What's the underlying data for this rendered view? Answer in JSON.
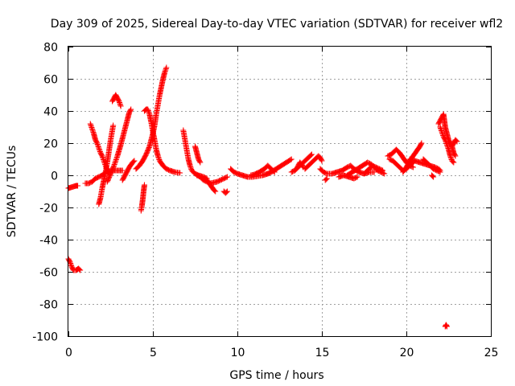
{
  "chart_data": {
    "type": "scatter",
    "title": "Day 309 of 2025, Sidereal Day-to-day VTEC variation (SDTVAR) for receiver wfl2",
    "xlabel": "GPS time / hours",
    "ylabel": "SDTVAR / TECUs",
    "xlim": [
      0,
      25
    ],
    "ylim": [
      -100,
      80
    ],
    "x_ticks": [
      0,
      5,
      10,
      15,
      20,
      25
    ],
    "y_ticks": [
      -100,
      -80,
      -60,
      -40,
      -20,
      0,
      20,
      40,
      60,
      80
    ],
    "x_tick_labels": [
      "0",
      "5",
      "10",
      "15",
      "20",
      "25"
    ],
    "y_tick_labels": [
      "-100",
      "-80",
      "-60",
      "-40",
      "-20",
      "0",
      "20",
      "40",
      "60",
      "80"
    ],
    "grid": true,
    "marker": "+",
    "color": "#ff0000",
    "series": [
      {
        "name": "seg-01",
        "points": [
          [
            0.0,
            -8
          ],
          [
            0.15,
            -7.5
          ],
          [
            0.3,
            -7
          ],
          [
            0.45,
            -6.5
          ],
          [
            0.55,
            -6.5
          ]
        ]
      },
      {
        "name": "seg-02",
        "points": [
          [
            0.0,
            -52
          ],
          [
            0.1,
            -54
          ],
          [
            0.2,
            -57
          ],
          [
            0.3,
            -59
          ],
          [
            0.45,
            -59
          ],
          [
            0.6,
            -58
          ],
          [
            0.7,
            -59
          ]
        ]
      },
      {
        "name": "seg-03",
        "points": [
          [
            1.0,
            -5
          ],
          [
            1.2,
            -5
          ],
          [
            1.4,
            -4
          ],
          [
            1.6,
            -2
          ],
          [
            1.8,
            -1
          ],
          [
            2.0,
            0
          ],
          [
            2.2,
            2
          ],
          [
            2.4,
            2.5
          ],
          [
            2.6,
            3
          ],
          [
            2.8,
            3
          ],
          [
            3.0,
            3
          ],
          [
            3.2,
            3
          ]
        ]
      },
      {
        "name": "seg-04",
        "points": [
          [
            1.3,
            32
          ],
          [
            1.4,
            29
          ],
          [
            1.5,
            26
          ],
          [
            1.6,
            22
          ],
          [
            1.7,
            20
          ],
          [
            1.8,
            17
          ],
          [
            1.9,
            14
          ],
          [
            2.0,
            12
          ],
          [
            2.1,
            9
          ],
          [
            2.2,
            6
          ],
          [
            2.3,
            3
          ],
          [
            2.4,
            1
          ]
        ]
      },
      {
        "name": "seg-05",
        "points": [
          [
            1.8,
            -18
          ],
          [
            1.9,
            -14
          ],
          [
            2.0,
            -8
          ],
          [
            2.1,
            -3
          ],
          [
            2.2,
            2
          ],
          [
            2.3,
            8
          ],
          [
            2.4,
            15
          ],
          [
            2.5,
            22
          ],
          [
            2.6,
            28
          ],
          [
            2.65,
            31
          ]
        ]
      },
      {
        "name": "seg-06",
        "points": [
          [
            2.3,
            -4
          ],
          [
            2.5,
            1
          ],
          [
            2.7,
            6
          ],
          [
            2.9,
            12
          ],
          [
            3.1,
            19
          ],
          [
            3.3,
            27
          ],
          [
            3.5,
            35
          ],
          [
            3.6,
            39
          ],
          [
            3.7,
            41
          ]
        ]
      },
      {
        "name": "seg-07",
        "points": [
          [
            2.6,
            46
          ],
          [
            2.7,
            48
          ],
          [
            2.8,
            50
          ],
          [
            2.9,
            48
          ],
          [
            3.0,
            46
          ],
          [
            3.1,
            43
          ]
        ]
      },
      {
        "name": "seg-08",
        "points": [
          [
            3.2,
            -3
          ],
          [
            3.4,
            1
          ],
          [
            3.6,
            5
          ],
          [
            3.8,
            8
          ],
          [
            3.9,
            9
          ]
        ]
      },
      {
        "name": "seg-09",
        "points": [
          [
            4.3,
            -22
          ],
          [
            4.35,
            -19
          ],
          [
            4.4,
            -15
          ],
          [
            4.45,
            -10
          ],
          [
            4.5,
            -6
          ]
        ]
      },
      {
        "name": "seg-10",
        "points": [
          [
            4.0,
            4
          ],
          [
            4.2,
            6
          ],
          [
            4.4,
            9
          ],
          [
            4.6,
            13
          ],
          [
            4.8,
            18
          ],
          [
            5.0,
            26
          ],
          [
            5.1,
            31
          ],
          [
            5.2,
            38
          ],
          [
            5.3,
            44
          ],
          [
            5.4,
            50
          ],
          [
            5.5,
            55
          ],
          [
            5.6,
            60
          ],
          [
            5.7,
            64
          ],
          [
            5.8,
            67
          ]
        ]
      },
      {
        "name": "seg-11",
        "points": [
          [
            4.5,
            40
          ],
          [
            4.6,
            41
          ],
          [
            4.7,
            41
          ],
          [
            4.8,
            38
          ],
          [
            4.9,
            33
          ],
          [
            5.0,
            27
          ],
          [
            5.1,
            22
          ],
          [
            5.2,
            16
          ],
          [
            5.3,
            12
          ],
          [
            5.4,
            9
          ],
          [
            5.6,
            6
          ],
          [
            5.8,
            4
          ],
          [
            6.0,
            3
          ],
          [
            6.3,
            2
          ],
          [
            6.6,
            1.5
          ]
        ]
      },
      {
        "name": "seg-12",
        "points": [
          [
            6.8,
            28
          ],
          [
            6.9,
            22
          ],
          [
            7.0,
            16
          ],
          [
            7.1,
            10
          ],
          [
            7.2,
            6
          ],
          [
            7.3,
            3
          ],
          [
            7.5,
            1
          ],
          [
            7.7,
            0
          ],
          [
            8.0,
            -1
          ],
          [
            8.2,
            -2
          ]
        ]
      },
      {
        "name": "seg-13",
        "points": [
          [
            7.5,
            18
          ],
          [
            7.6,
            14
          ],
          [
            7.7,
            10
          ],
          [
            7.8,
            8
          ]
        ]
      },
      {
        "name": "seg-14",
        "points": [
          [
            7.6,
            0
          ],
          [
            7.8,
            -1
          ],
          [
            8.0,
            -3
          ],
          [
            8.2,
            -4
          ],
          [
            8.4,
            -5
          ],
          [
            8.6,
            -4.5
          ],
          [
            8.8,
            -4
          ],
          [
            9.0,
            -3
          ],
          [
            9.2,
            -2
          ],
          [
            9.4,
            -1
          ]
        ]
      },
      {
        "name": "seg-15",
        "points": [
          [
            8.0,
            -2
          ],
          [
            8.2,
            -3
          ],
          [
            8.4,
            -6
          ],
          [
            8.6,
            -9
          ],
          [
            8.7,
            -10
          ]
        ]
      },
      {
        "name": "seg-16",
        "points": [
          [
            9.2,
            -10
          ],
          [
            9.3,
            -11
          ],
          [
            9.4,
            -10
          ]
        ]
      },
      {
        "name": "seg-17",
        "points": [
          [
            9.6,
            4
          ],
          [
            9.8,
            2
          ],
          [
            10.0,
            1
          ],
          [
            10.3,
            0
          ],
          [
            10.6,
            -1
          ],
          [
            10.9,
            -1
          ],
          [
            11.2,
            -0.5
          ],
          [
            11.5,
            0
          ],
          [
            11.8,
            1
          ],
          [
            12.0,
            2
          ]
        ]
      },
      {
        "name": "seg-18",
        "points": [
          [
            10.8,
            0
          ],
          [
            11.0,
            0.5
          ],
          [
            11.3,
            2
          ],
          [
            11.6,
            4
          ],
          [
            11.8,
            6
          ],
          [
            12.0,
            4
          ],
          [
            12.2,
            2
          ]
        ]
      },
      {
        "name": "seg-19",
        "points": [
          [
            11.8,
            1
          ],
          [
            12.0,
            2
          ],
          [
            12.3,
            4
          ],
          [
            12.6,
            6
          ],
          [
            12.9,
            8
          ],
          [
            13.2,
            10
          ]
        ]
      },
      {
        "name": "seg-20",
        "points": [
          [
            13.2,
            2
          ],
          [
            13.4,
            3
          ],
          [
            13.6,
            5
          ],
          [
            13.8,
            7
          ],
          [
            14.0,
            9
          ],
          [
            14.2,
            11
          ],
          [
            14.4,
            13
          ]
        ]
      },
      {
        "name": "seg-21",
        "points": [
          [
            13.5,
            4
          ],
          [
            13.6,
            6
          ],
          [
            13.7,
            8
          ],
          [
            13.8,
            7
          ],
          [
            13.9,
            5
          ]
        ]
      },
      {
        "name": "seg-22",
        "points": [
          [
            14.0,
            4
          ],
          [
            14.2,
            6
          ],
          [
            14.4,
            8
          ],
          [
            14.6,
            10
          ],
          [
            14.8,
            12
          ],
          [
            14.9,
            11
          ],
          [
            15.0,
            9
          ]
        ]
      },
      {
        "name": "seg-23",
        "points": [
          [
            14.9,
            4
          ],
          [
            15.1,
            2
          ],
          [
            15.3,
            1
          ],
          [
            15.6,
            1
          ],
          [
            15.9,
            2
          ],
          [
            16.2,
            3
          ],
          [
            16.5,
            5
          ],
          [
            16.7,
            6
          ],
          [
            16.9,
            4
          ],
          [
            17.2,
            2
          ],
          [
            17.5,
            1
          ],
          [
            17.8,
            2
          ],
          [
            18.1,
            2
          ]
        ]
      },
      {
        "name": "seg-24",
        "points": [
          [
            15.2,
            -3
          ],
          [
            15.3,
            -2
          ]
        ]
      },
      {
        "name": "seg-25",
        "points": [
          [
            16.0,
            -1
          ],
          [
            16.3,
            0
          ],
          [
            16.6,
            -1
          ],
          [
            16.9,
            -2
          ],
          [
            17.1,
            -1
          ]
        ]
      },
      {
        "name": "seg-26",
        "points": [
          [
            16.5,
            0
          ],
          [
            16.8,
            2
          ],
          [
            17.1,
            4
          ],
          [
            17.4,
            6
          ],
          [
            17.7,
            8
          ],
          [
            17.9,
            7
          ],
          [
            18.1,
            5
          ],
          [
            18.3,
            3
          ],
          [
            18.5,
            2
          ],
          [
            18.7,
            1
          ]
        ]
      },
      {
        "name": "seg-27",
        "points": [
          [
            17.5,
            1
          ],
          [
            17.7,
            3
          ],
          [
            17.9,
            5
          ],
          [
            18.0,
            6
          ],
          [
            18.2,
            5
          ],
          [
            18.4,
            4
          ],
          [
            18.6,
            3
          ]
        ]
      },
      {
        "name": "seg-28",
        "points": [
          [
            18.9,
            12
          ],
          [
            19.1,
            13
          ],
          [
            19.3,
            15
          ],
          [
            19.4,
            16
          ],
          [
            19.6,
            14
          ],
          [
            19.8,
            11
          ],
          [
            20.0,
            8
          ],
          [
            20.2,
            6
          ],
          [
            20.4,
            5
          ]
        ]
      },
      {
        "name": "seg-29",
        "points": [
          [
            19.0,
            10
          ],
          [
            19.2,
            9
          ],
          [
            19.4,
            7
          ],
          [
            19.6,
            5
          ],
          [
            19.8,
            3
          ],
          [
            20.0,
            4
          ],
          [
            20.2,
            6
          ],
          [
            20.4,
            8
          ]
        ]
      },
      {
        "name": "seg-30",
        "points": [
          [
            19.8,
            2
          ],
          [
            20.0,
            5
          ],
          [
            20.2,
            9
          ],
          [
            20.4,
            12
          ],
          [
            20.6,
            15
          ],
          [
            20.8,
            18
          ],
          [
            20.9,
            20
          ]
        ]
      },
      {
        "name": "seg-31",
        "points": [
          [
            20.2,
            10
          ],
          [
            20.5,
            9
          ],
          [
            20.8,
            8
          ],
          [
            21.1,
            7
          ],
          [
            21.4,
            6
          ],
          [
            21.7,
            5
          ],
          [
            21.9,
            4
          ],
          [
            22.0,
            3
          ]
        ]
      },
      {
        "name": "seg-32",
        "points": [
          [
            21.0,
            10
          ],
          [
            21.2,
            8
          ],
          [
            21.4,
            6
          ],
          [
            21.6,
            4
          ],
          [
            21.8,
            3
          ],
          [
            22.0,
            2
          ]
        ]
      },
      {
        "name": "seg-33",
        "points": [
          [
            21.5,
            0
          ],
          [
            21.6,
            -1
          ]
        ]
      },
      {
        "name": "seg-34",
        "points": [
          [
            21.9,
            32
          ],
          [
            22.0,
            34
          ],
          [
            22.1,
            36
          ],
          [
            22.2,
            38
          ],
          [
            22.25,
            34
          ],
          [
            22.3,
            30
          ],
          [
            22.4,
            26
          ],
          [
            22.5,
            22
          ],
          [
            22.6,
            20
          ],
          [
            22.7,
            18
          ],
          [
            22.8,
            20
          ],
          [
            22.9,
            22
          ],
          [
            23.0,
            21
          ]
        ]
      },
      {
        "name": "seg-35",
        "points": [
          [
            22.0,
            30
          ],
          [
            22.1,
            27
          ],
          [
            22.2,
            24
          ],
          [
            22.3,
            22
          ],
          [
            22.4,
            19
          ],
          [
            22.5,
            16
          ],
          [
            22.6,
            12
          ],
          [
            22.7,
            9
          ],
          [
            22.8,
            8
          ]
        ]
      },
      {
        "name": "seg-36",
        "points": [
          [
            22.7,
            18
          ],
          [
            22.8,
            14
          ],
          [
            22.9,
            12
          ]
        ]
      },
      {
        "name": "seg-37",
        "points": [
          [
            22.3,
            -94
          ],
          [
            22.35,
            -93
          ],
          [
            22.4,
            -94
          ]
        ]
      }
    ]
  }
}
